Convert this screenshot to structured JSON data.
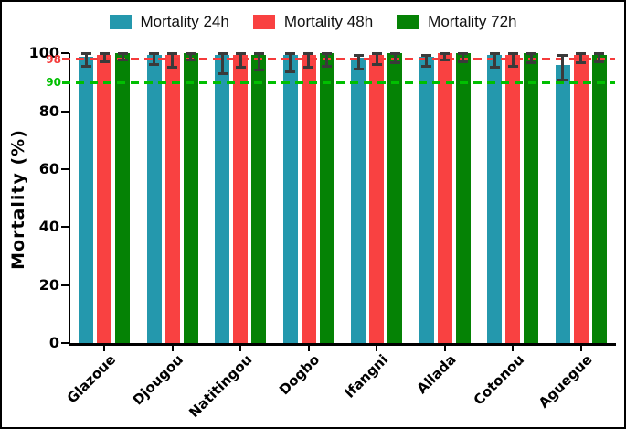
{
  "chart_data": {
    "type": "bar",
    "title": "",
    "xlabel": "",
    "ylabel": "Mortality (%)",
    "ylim": [
      0,
      100
    ],
    "yticks": [
      0,
      20,
      40,
      60,
      80,
      100
    ],
    "grid": false,
    "legend_position": "top",
    "categories": [
      "Glazoue",
      "Djougou",
      "Natitingou",
      "Dogbo",
      "Ifangni",
      "Allada",
      "Cotonou",
      "Aguegue"
    ],
    "series": [
      {
        "name": "Mortality 24h",
        "color": "#2498ad",
        "values": [
          99,
          99.5,
          99.5,
          99.5,
          98.5,
          99,
          99.5,
          96
        ],
        "err_low": [
          95.5,
          96,
          93,
          93.5,
          94.5,
          95.5,
          95,
          90.5
        ],
        "err_high": [
          100,
          100,
          100,
          100,
          99.5,
          99.5,
          100,
          99.5
        ]
      },
      {
        "name": "Mortality 48h",
        "color": "#f94141",
        "values": [
          99.5,
          99.5,
          99.5,
          99.5,
          99.5,
          100,
          99.5,
          99.5
        ],
        "err_low": [
          97,
          95,
          95,
          95,
          96,
          97.5,
          95.5,
          96.5
        ],
        "err_high": [
          100,
          100,
          100,
          100,
          100,
          100,
          100,
          100
        ]
      },
      {
        "name": "Mortality 72h",
        "color": "#058205",
        "values": [
          100,
          100,
          99.5,
          100,
          100,
          100,
          100,
          99.5
        ],
        "err_low": [
          97.5,
          97.5,
          94,
          95.5,
          96.5,
          97,
          96.5,
          97
        ],
        "err_high": [
          100,
          100,
          100,
          100,
          100,
          100,
          100,
          100
        ]
      }
    ],
    "reference_lines": [
      {
        "value": 98,
        "label": "98",
        "color": "#f53b3b",
        "style": "dashed"
      },
      {
        "value": 90,
        "label": "90",
        "color": "#00bf00",
        "style": "dashed"
      }
    ],
    "error_bar_color": "#3a3a3a"
  }
}
